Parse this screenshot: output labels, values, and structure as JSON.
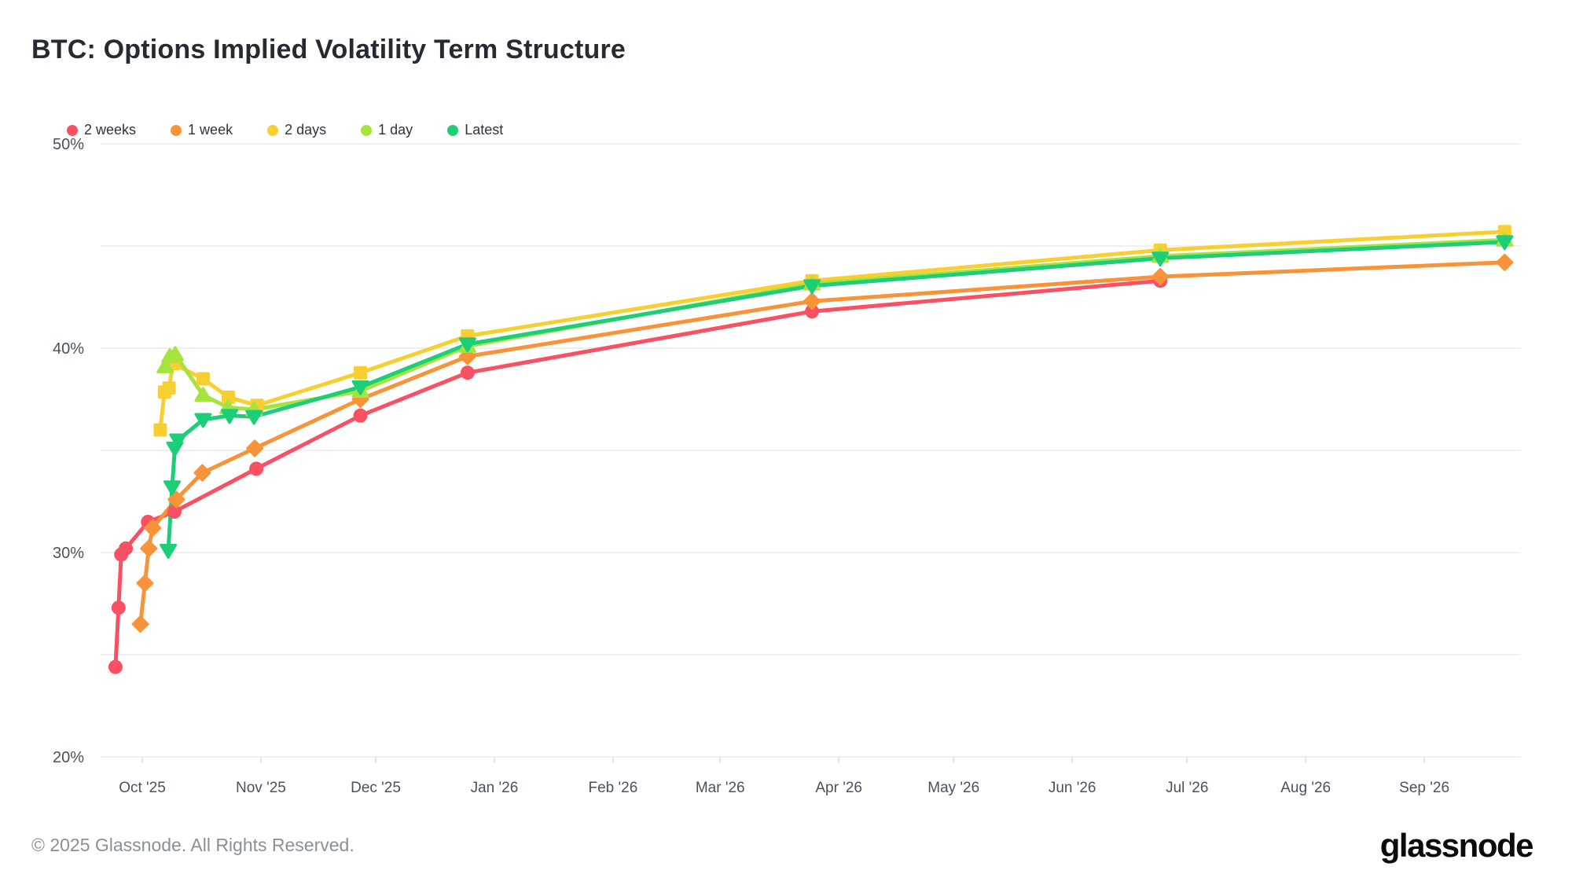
{
  "title": "BTC: Options Implied Volatility Term Structure",
  "footer": {
    "copyright": "© 2025 Glassnode. All Rights Reserved.",
    "brand": "glassnode"
  },
  "colors": {
    "background": "#ffffff",
    "gridline": "#F0F0F2",
    "tick": "#E3E5E8",
    "axis_text": "#4A515B",
    "title_text": "#262A31",
    "footer_text": "#8A9098"
  },
  "chart_data": {
    "type": "line",
    "title": "BTC: Options Implied Volatility Term Structure",
    "x_unit": "days since 2025-10-01",
    "x_ticks": {
      "labels": [
        "Oct '25",
        "Nov '25",
        "Dec '25",
        "Jan '26",
        "Feb '26",
        "Mar '26",
        "Apr '26",
        "May '26",
        "Jun '26",
        "Jul '26",
        "Aug '26",
        "Sep '26"
      ],
      "days": [
        0,
        31,
        61,
        92,
        123,
        151,
        182,
        212,
        243,
        273,
        304,
        335
      ]
    },
    "y_axis": {
      "unit": "%",
      "range": [
        20,
        50
      ],
      "gridline_step": 5,
      "labeled_ticks": [
        50,
        40,
        30,
        20
      ]
    },
    "grid": "horizontal-only",
    "legend_position": "top-left",
    "series": [
      {
        "name": "2 weeks",
        "color": "#F95064",
        "marker": "circle",
        "points": [
          [
            -7,
            24.4
          ],
          [
            -6.2,
            27.3
          ],
          [
            -5.5,
            29.9
          ],
          [
            -4.3,
            30.2
          ],
          [
            1.5,
            31.5
          ],
          [
            8.4,
            32.0
          ],
          [
            29.8,
            34.1
          ],
          [
            57,
            36.7
          ],
          [
            85,
            38.8
          ],
          [
            175,
            41.8
          ],
          [
            266,
            43.3
          ]
        ]
      },
      {
        "name": "1 week",
        "color": "#F99339",
        "marker": "diamond",
        "points": [
          [
            -0.5,
            26.5
          ],
          [
            0.7,
            28.5
          ],
          [
            1.7,
            30.2
          ],
          [
            2.7,
            31.2
          ],
          [
            8.9,
            32.6
          ],
          [
            15.7,
            33.9
          ],
          [
            29.4,
            35.1
          ],
          [
            57,
            37.5
          ],
          [
            85,
            39.6
          ],
          [
            175,
            42.3
          ],
          [
            266,
            43.5
          ],
          [
            356,
            44.2
          ]
        ]
      },
      {
        "name": "2 days",
        "color": "#F8CF32",
        "marker": "square",
        "points": [
          [
            4.7,
            36.0
          ],
          [
            5.8,
            37.85
          ],
          [
            7,
            38.05
          ],
          [
            8,
            39.25
          ],
          [
            15.9,
            38.5
          ],
          [
            22.5,
            37.6
          ],
          [
            30,
            37.2
          ],
          [
            57,
            38.8
          ],
          [
            85,
            40.6
          ],
          [
            175,
            43.3
          ],
          [
            266,
            44.8
          ],
          [
            356,
            45.7
          ]
        ]
      },
      {
        "name": "1 day",
        "color": "#A5E43D",
        "marker": "triangle-up",
        "points": [
          [
            6,
            39.1
          ],
          [
            7.2,
            39.6
          ],
          [
            8.6,
            39.7
          ],
          [
            15.9,
            37.7
          ],
          [
            22.4,
            37.1
          ],
          [
            29.2,
            37.0
          ],
          [
            57,
            37.9
          ],
          [
            85,
            40.1
          ],
          [
            175,
            43.15
          ],
          [
            266,
            44.5
          ],
          [
            356,
            45.3
          ]
        ]
      },
      {
        "name": "Latest",
        "color": "#1CCE78",
        "marker": "triangle-down",
        "points": [
          [
            6.8,
            30.1
          ],
          [
            7.8,
            33.2
          ],
          [
            8.5,
            35.1
          ],
          [
            9.3,
            35.5
          ],
          [
            15.9,
            36.5
          ],
          [
            22.8,
            36.7
          ],
          [
            29.2,
            36.65
          ],
          [
            57,
            38.1
          ],
          [
            85,
            40.2
          ],
          [
            175,
            43.05
          ],
          [
            266,
            44.4
          ],
          [
            356,
            45.2
          ]
        ]
      }
    ]
  }
}
